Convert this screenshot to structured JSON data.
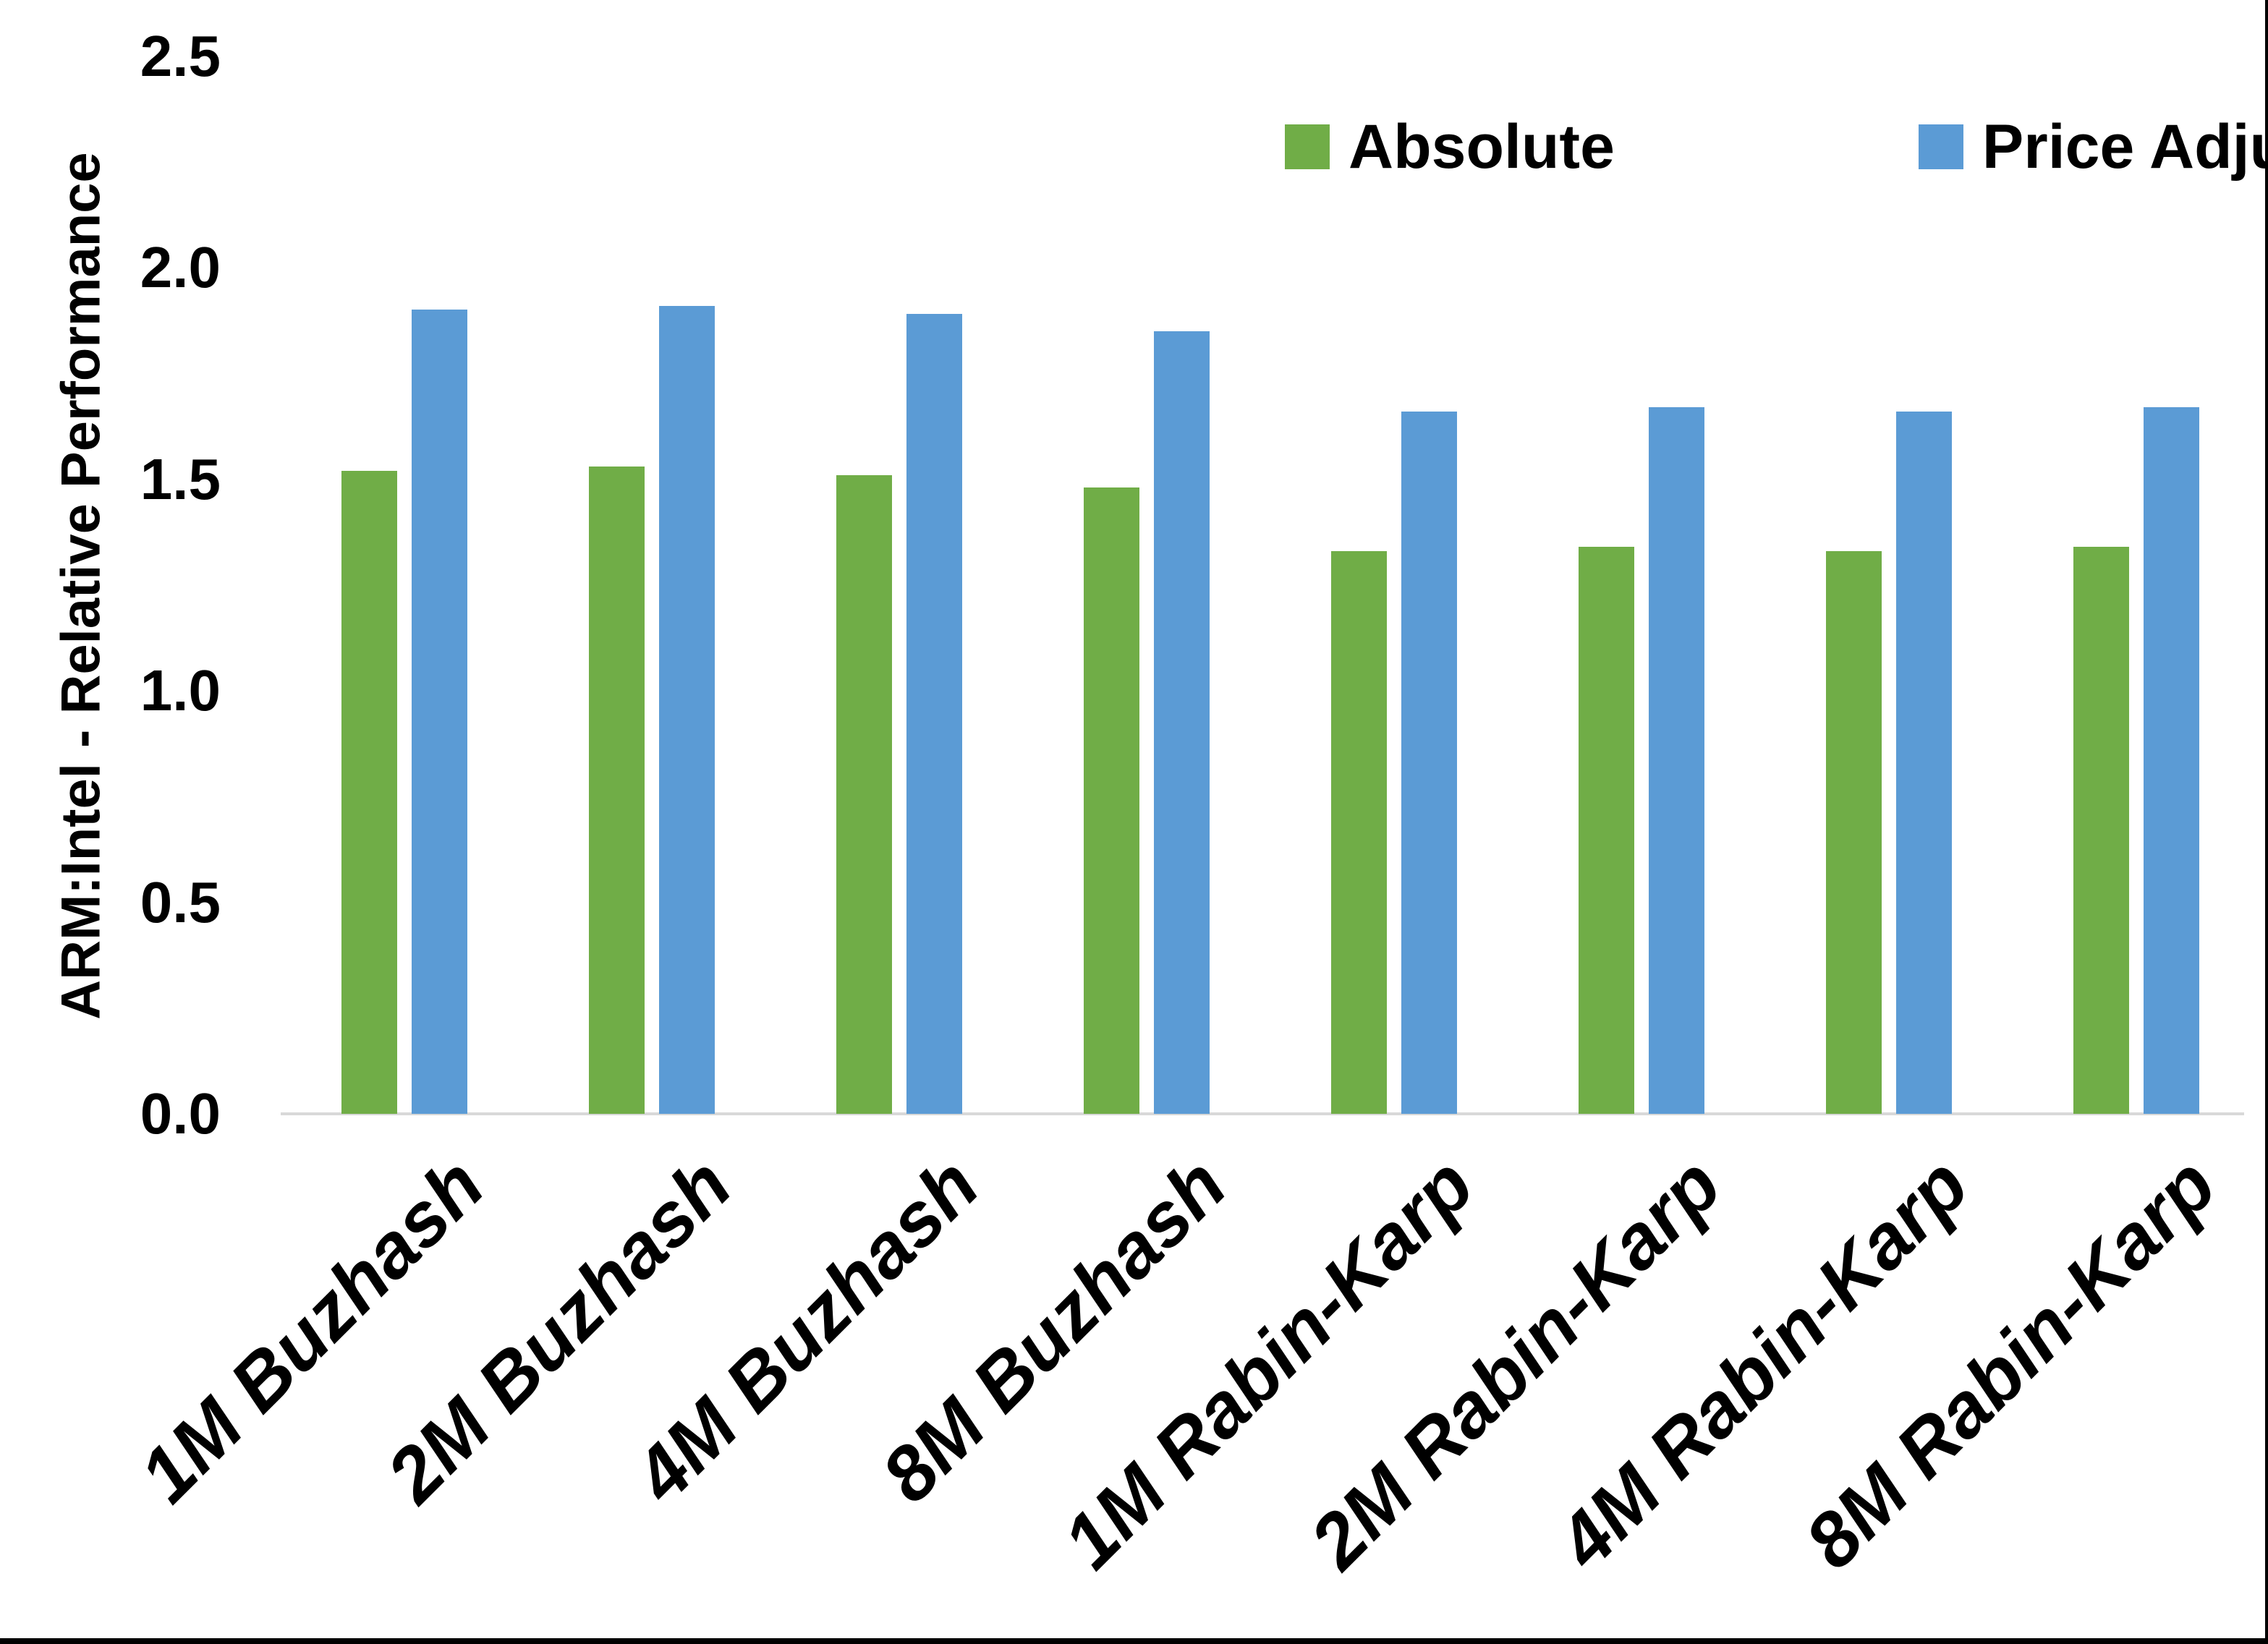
{
  "chart_data": {
    "type": "bar",
    "title": "",
    "categories": [
      "1M Buzhash",
      "2M Buzhash",
      "4M Buzhash",
      "8M Buzhash",
      "1M Rabin-Karp",
      "2M Rabin-Karp",
      "4M Rabin-Karp",
      "8M Rabin-Karp"
    ],
    "series": [
      {
        "name": "Absolute",
        "color": "#70AD47",
        "values": [
          1.52,
          1.53,
          1.51,
          1.48,
          1.33,
          1.34,
          1.33,
          1.34
        ]
      },
      {
        "name": "Price Adjusted",
        "color": "#5B9BD5",
        "values": [
          1.9,
          1.91,
          1.89,
          1.85,
          1.66,
          1.67,
          1.66,
          1.67
        ]
      }
    ],
    "xlabel": "",
    "ylabel": "ARM:Intel - Relative Performance",
    "ylim": [
      0.0,
      2.5
    ],
    "yticks": [
      "0.0",
      "0.5",
      "1.0",
      "1.5",
      "2.0",
      "2.5"
    ],
    "grid": false,
    "legend_position": "top-right",
    "axis_line_color": "#d8d8d8",
    "text_color": "#000000",
    "background_color": "#ffffff"
  },
  "legend": {
    "items": [
      {
        "label": "Absolute",
        "color": "#70AD47"
      },
      {
        "label": "Price Adjusted",
        "color": "#5B9BD5"
      }
    ]
  }
}
